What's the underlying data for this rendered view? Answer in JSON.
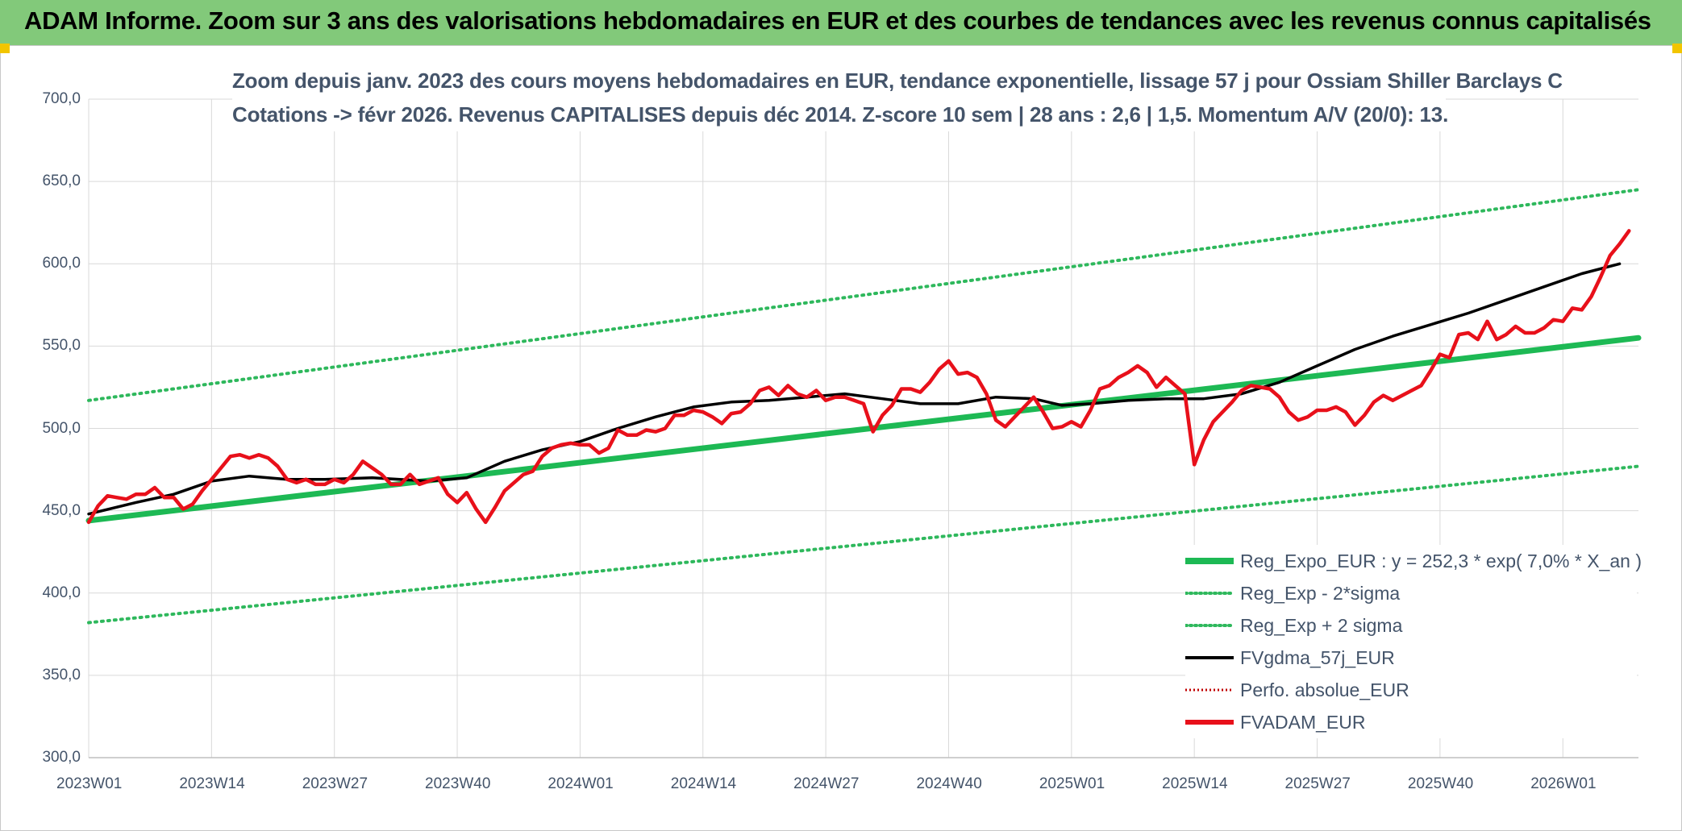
{
  "banner": {
    "title": "ADAM Informe. Zoom sur 3 ans des valorisations hebdomadaires en EUR et des courbes de tendances avec les revenus connus capitalisés"
  },
  "colors": {
    "banner_bg": "#82c97a",
    "regression": "#1db954",
    "bands": "#2eb85c",
    "moving_average": "#000000",
    "perf_absolue": "#c00000",
    "price": "#e8101a"
  },
  "chart_data": {
    "type": "line",
    "title": "Zoom depuis janv. 2023 des cours moyens hebdomadaires en EUR, tendance exponentielle, lissage 57 j pour Ossiam Shiller Barclays C",
    "subtitle": "Cotations -> févr 2026. Revenus CAPITALISES depuis déc 2014. Z-score 10 sem | 28 ans : 2,6 | 1,5. Momentum A/V (20/0): 13.",
    "xlabel": "",
    "ylabel": "",
    "ylim": [
      300,
      700
    ],
    "y_ticks": [
      "300,0",
      "350,0",
      "400,0",
      "450,0",
      "500,0",
      "550,0",
      "600,0",
      "650,0",
      "700,0"
    ],
    "x_tick_labels": [
      "2023W01",
      "2023W14",
      "2023W27",
      "2023W40",
      "2024W01",
      "2024W14",
      "2024W27",
      "2024W40",
      "2025W01",
      "2025W14",
      "2025W27",
      "2025W40",
      "2026W01"
    ],
    "grid": true,
    "legend_position": "bottom-right",
    "series": [
      {
        "name": "Reg_Expo_EUR : y = 252,3 * exp( 7,0% *  X_an )",
        "style": "solid-thick",
        "points": [
          [
            0,
            444
          ],
          [
            164,
            555
          ]
        ]
      },
      {
        "name": "Reg_Exp - 2*sigma",
        "style": "dotted",
        "points": [
          [
            0,
            382
          ],
          [
            164,
            477
          ]
        ]
      },
      {
        "name": "Reg_Exp + 2 sigma",
        "style": "dotted",
        "points": [
          [
            0,
            517
          ],
          [
            164,
            645
          ]
        ]
      },
      {
        "name": "FVgdma_57j_EUR",
        "style": "solid",
        "points": [
          [
            0,
            448
          ],
          [
            5,
            455
          ],
          [
            9,
            460
          ],
          [
            13,
            468
          ],
          [
            17,
            471
          ],
          [
            21,
            469
          ],
          [
            25,
            469
          ],
          [
            30,
            470
          ],
          [
            36,
            468
          ],
          [
            40,
            470
          ],
          [
            44,
            480
          ],
          [
            48,
            487
          ],
          [
            52,
            492
          ],
          [
            56,
            500
          ],
          [
            60,
            507
          ],
          [
            64,
            513
          ],
          [
            68,
            516
          ],
          [
            72,
            517
          ],
          [
            76,
            519
          ],
          [
            80,
            521
          ],
          [
            84,
            518
          ],
          [
            88,
            515
          ],
          [
            92,
            515
          ],
          [
            96,
            519
          ],
          [
            100,
            518
          ],
          [
            103,
            514
          ],
          [
            106,
            515
          ],
          [
            110,
            517
          ],
          [
            114,
            518
          ],
          [
            118,
            518
          ],
          [
            122,
            521
          ],
          [
            126,
            528
          ],
          [
            130,
            538
          ],
          [
            134,
            548
          ],
          [
            138,
            556
          ],
          [
            142,
            563
          ],
          [
            146,
            570
          ],
          [
            150,
            578
          ],
          [
            154,
            586
          ],
          [
            158,
            594
          ],
          [
            162,
            600
          ]
        ]
      },
      {
        "name": "Perfo. absolue_EUR",
        "style": "dotted",
        "points": []
      },
      {
        "name": "FVADAM_EUR",
        "style": "solid-thick",
        "points": [
          [
            0,
            443
          ],
          [
            1,
            453
          ],
          [
            2,
            459
          ],
          [
            3,
            458
          ],
          [
            4,
            457
          ],
          [
            5,
            460
          ],
          [
            6,
            460
          ],
          [
            7,
            464
          ],
          [
            8,
            458
          ],
          [
            9,
            458
          ],
          [
            10,
            451
          ],
          [
            11,
            454
          ],
          [
            12,
            462
          ],
          [
            13,
            469
          ],
          [
            14,
            476
          ],
          [
            15,
            483
          ],
          [
            16,
            484
          ],
          [
            17,
            482
          ],
          [
            18,
            484
          ],
          [
            19,
            482
          ],
          [
            20,
            477
          ],
          [
            21,
            469
          ],
          [
            22,
            467
          ],
          [
            23,
            469
          ],
          [
            24,
            466
          ],
          [
            25,
            466
          ],
          [
            26,
            469
          ],
          [
            27,
            467
          ],
          [
            28,
            472
          ],
          [
            29,
            480
          ],
          [
            30,
            476
          ],
          [
            31,
            472
          ],
          [
            32,
            466
          ],
          [
            33,
            466
          ],
          [
            34,
            472
          ],
          [
            35,
            466
          ],
          [
            36,
            468
          ],
          [
            37,
            470
          ],
          [
            38,
            460
          ],
          [
            39,
            455
          ],
          [
            40,
            461
          ],
          [
            41,
            451
          ],
          [
            42,
            443
          ],
          [
            43,
            452
          ],
          [
            44,
            462
          ],
          [
            45,
            467
          ],
          [
            46,
            472
          ],
          [
            47,
            474
          ],
          [
            48,
            483
          ],
          [
            49,
            488
          ],
          [
            50,
            490
          ],
          [
            51,
            491
          ],
          [
            52,
            490
          ],
          [
            53,
            490
          ],
          [
            54,
            485
          ],
          [
            55,
            488
          ],
          [
            56,
            499
          ],
          [
            57,
            496
          ],
          [
            58,
            496
          ],
          [
            59,
            499
          ],
          [
            60,
            498
          ],
          [
            61,
            500
          ],
          [
            62,
            508
          ],
          [
            63,
            508
          ],
          [
            64,
            511
          ],
          [
            65,
            510
          ],
          [
            66,
            507
          ],
          [
            67,
            503
          ],
          [
            68,
            509
          ],
          [
            69,
            510
          ],
          [
            70,
            515
          ],
          [
            71,
            523
          ],
          [
            72,
            525
          ],
          [
            73,
            520
          ],
          [
            74,
            526
          ],
          [
            75,
            521
          ],
          [
            76,
            519
          ],
          [
            77,
            523
          ],
          [
            78,
            517
          ],
          [
            79,
            519
          ],
          [
            80,
            519
          ],
          [
            81,
            517
          ],
          [
            82,
            515
          ],
          [
            83,
            498
          ],
          [
            84,
            508
          ],
          [
            85,
            514
          ],
          [
            86,
            524
          ],
          [
            87,
            524
          ],
          [
            88,
            522
          ],
          [
            89,
            528
          ],
          [
            90,
            536
          ],
          [
            91,
            541
          ],
          [
            92,
            533
          ],
          [
            93,
            534
          ],
          [
            94,
            531
          ],
          [
            95,
            521
          ],
          [
            96,
            505
          ],
          [
            97,
            501
          ],
          [
            98,
            507
          ],
          [
            99,
            513
          ],
          [
            100,
            519
          ],
          [
            101,
            510
          ],
          [
            102,
            500
          ],
          [
            103,
            501
          ],
          [
            104,
            504
          ],
          [
            105,
            501
          ],
          [
            106,
            511
          ],
          [
            107,
            524
          ],
          [
            108,
            526
          ],
          [
            109,
            531
          ],
          [
            110,
            534
          ],
          [
            111,
            538
          ],
          [
            112,
            534
          ],
          [
            113,
            525
          ],
          [
            114,
            531
          ],
          [
            115,
            526
          ],
          [
            116,
            521
          ],
          [
            117,
            478
          ],
          [
            118,
            493
          ],
          [
            119,
            504
          ],
          [
            120,
            510
          ],
          [
            121,
            516
          ],
          [
            122,
            523
          ],
          [
            123,
            526
          ],
          [
            124,
            525
          ],
          [
            125,
            524
          ],
          [
            126,
            519
          ],
          [
            127,
            510
          ],
          [
            128,
            505
          ],
          [
            129,
            507
          ],
          [
            130,
            511
          ],
          [
            131,
            511
          ],
          [
            132,
            513
          ],
          [
            133,
            510
          ],
          [
            134,
            502
          ],
          [
            135,
            508
          ],
          [
            136,
            516
          ],
          [
            137,
            520
          ],
          [
            138,
            517
          ],
          [
            139,
            520
          ],
          [
            140,
            523
          ],
          [
            141,
            526
          ],
          [
            142,
            535
          ],
          [
            143,
            545
          ],
          [
            144,
            543
          ],
          [
            145,
            557
          ],
          [
            146,
            558
          ],
          [
            147,
            554
          ],
          [
            148,
            565
          ],
          [
            149,
            554
          ],
          [
            150,
            557
          ],
          [
            151,
            562
          ],
          [
            152,
            558
          ],
          [
            153,
            558
          ],
          [
            154,
            561
          ],
          [
            155,
            566
          ],
          [
            156,
            565
          ],
          [
            157,
            573
          ],
          [
            158,
            572
          ],
          [
            159,
            580
          ],
          [
            160,
            592
          ],
          [
            161,
            605
          ],
          [
            162,
            612
          ],
          [
            163,
            620
          ]
        ]
      }
    ]
  }
}
